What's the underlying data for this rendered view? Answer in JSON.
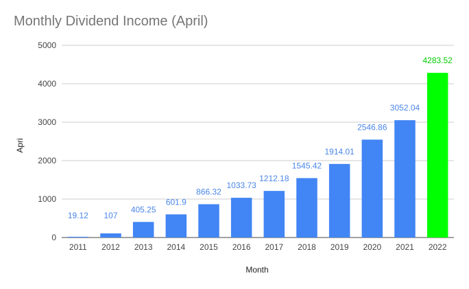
{
  "chart_data": {
    "type": "bar",
    "title": "Monthly Dividend Income (April)",
    "xlabel": "Month",
    "ylabel": "Apri",
    "ylim": [
      0,
      5000
    ],
    "yticks": [
      0,
      1000,
      2000,
      3000,
      4000,
      5000
    ],
    "grid": true,
    "categories": [
      "2011",
      "2012",
      "2013",
      "2014",
      "2015",
      "2016",
      "2017",
      "2018",
      "2019",
      "2020",
      "2021",
      "2022"
    ],
    "values": [
      19.12,
      107,
      405.25,
      601.9,
      866.32,
      1033.73,
      1212.18,
      1545.42,
      1914.01,
      2546.86,
      3052.04,
      4283.52
    ],
    "data_labels": [
      "19.12",
      "107",
      "405.25",
      "601.9",
      "866.32",
      "1033.73",
      "1212.18",
      "1545.42",
      "1914.01",
      "2546.86",
      "3052.04",
      "4283.52"
    ],
    "colors": {
      "bar": "#4285f4",
      "highlight_bar": "#00ff00",
      "label": "#4a86e8",
      "highlight_label": "#00cc00",
      "grid": "#cccccc",
      "axis_text": "#444444"
    },
    "highlight_index": 11
  }
}
